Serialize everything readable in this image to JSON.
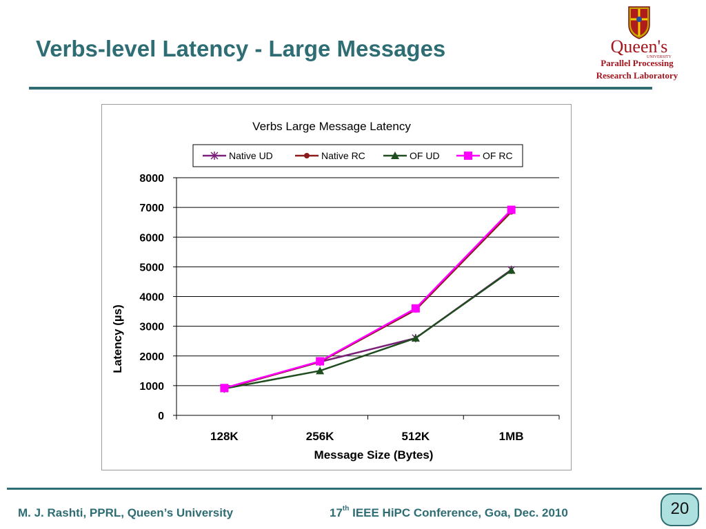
{
  "slide": {
    "title": "Verbs-level Latency - Large Messages",
    "footer_left": "M. J. Rashti, PPRL, Queen’s University",
    "footer_right_prefix": "17",
    "footer_right_sup": "th",
    "footer_right_suffix": " IEEE HiPC Conference, Goa, Dec. 2010",
    "page_number": "20"
  },
  "logo": {
    "name": "Queen's",
    "subname": "UNIVERSITY",
    "line1": "Parallel Processing",
    "line2": "Research Laboratory"
  },
  "colors": {
    "accent": "#2e6d73",
    "logo_red": "#a3141d",
    "native_ud": "#7a1f7a",
    "native_rc": "#8b1a1a",
    "of_ud": "#1f4d1f",
    "of_rc": "#ff00ff"
  },
  "chart_data": {
    "type": "line",
    "title": "Verbs Large Message Latency",
    "xlabel": "Message Size (Bytes)",
    "ylabel": "Latency (µs)",
    "categories": [
      "128K",
      "256K",
      "512K",
      "1MB"
    ],
    "ylim": [
      0,
      8000
    ],
    "yticks": [
      0,
      1000,
      2000,
      3000,
      4000,
      5000,
      6000,
      7000,
      8000
    ],
    "grid": true,
    "legend_position": "top",
    "series": [
      {
        "name": "Native UD",
        "values": [
          900,
          1800,
          2600,
          4900
        ],
        "color": "#7a1f7a",
        "marker": "star"
      },
      {
        "name": "Native RC",
        "values": [
          900,
          1800,
          3550,
          6850
        ],
        "color": "#8b1a1a",
        "marker": "circle"
      },
      {
        "name": "OF UD",
        "values": [
          900,
          1500,
          2600,
          4880
        ],
        "color": "#1f4d1f",
        "marker": "triangle"
      },
      {
        "name": "OF RC",
        "values": [
          920,
          1820,
          3600,
          6920
        ],
        "color": "#ff00ff",
        "marker": "square"
      }
    ]
  }
}
